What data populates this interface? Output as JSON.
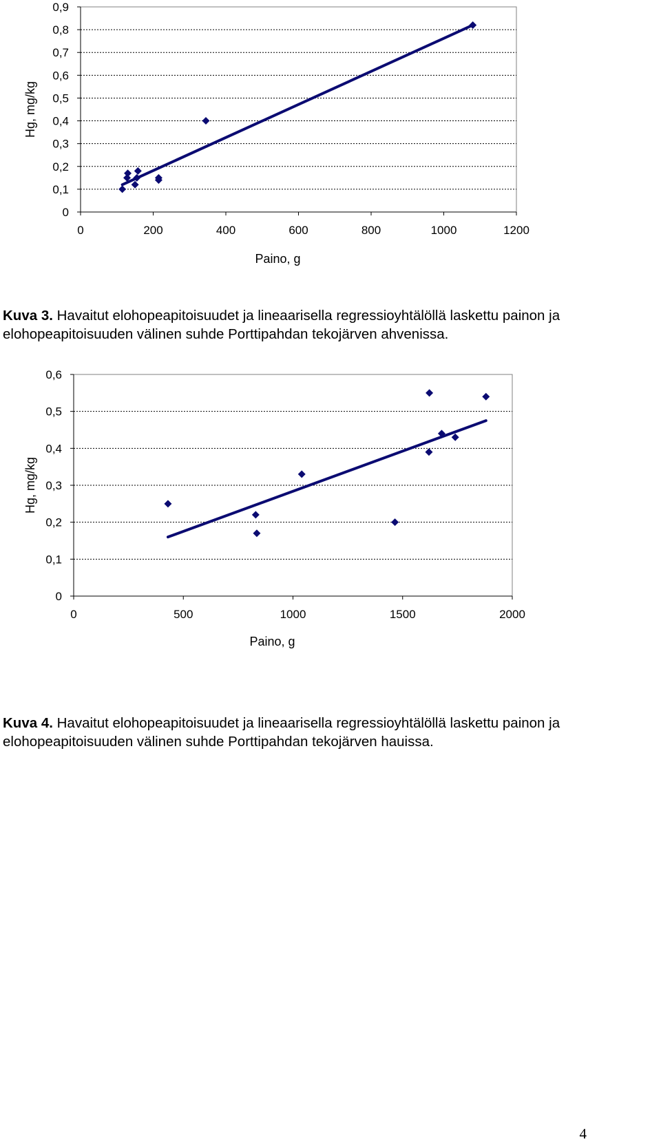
{
  "chart_data": [
    {
      "type": "scatter",
      "title": "",
      "xlabel": "Paino, g",
      "ylabel": "Hg, mg/kg",
      "xlim": [
        0,
        1200
      ],
      "ylim": [
        0,
        0.9
      ],
      "x_ticks": [
        0,
        200,
        400,
        600,
        800,
        1000,
        1200
      ],
      "y_ticks": [
        0,
        0.1,
        0.2,
        0.3,
        0.4,
        0.5,
        0.6,
        0.7,
        0.8,
        0.9
      ],
      "x_tick_labels": [
        "0",
        "200",
        "400",
        "600",
        "800",
        "1000",
        "1200"
      ],
      "y_tick_labels": [
        "0",
        "0,1",
        "0,2",
        "0,3",
        "0,4",
        "0,5",
        "0,6",
        "0,7",
        "0,8",
        "0,9"
      ],
      "grid": "horizontal dashed",
      "points": [
        {
          "x": 115,
          "y": 0.1
        },
        {
          "x": 128,
          "y": 0.15
        },
        {
          "x": 130,
          "y": 0.17
        },
        {
          "x": 150,
          "y": 0.12
        },
        {
          "x": 155,
          "y": 0.15
        },
        {
          "x": 158,
          "y": 0.18
        },
        {
          "x": 215,
          "y": 0.14
        },
        {
          "x": 215,
          "y": 0.15
        },
        {
          "x": 345,
          "y": 0.4
        },
        {
          "x": 1080,
          "y": 0.82
        }
      ],
      "trendline": {
        "x": [
          115,
          1080
        ],
        "y": [
          0.12,
          0.82
        ]
      },
      "colors": {
        "series": "#0b0b72"
      }
    },
    {
      "type": "scatter",
      "title": "",
      "xlabel": "Paino, g",
      "ylabel": "Hg, mg/kg",
      "xlim": [
        0,
        2000
      ],
      "ylim": [
        0,
        0.6
      ],
      "x_ticks": [
        0,
        500,
        1000,
        1500,
        2000
      ],
      "y_ticks": [
        0,
        0.1,
        0.2,
        0.3,
        0.4,
        0.5,
        0.6
      ],
      "x_tick_labels": [
        "0",
        "500",
        "1000",
        "1500",
        "2000"
      ],
      "y_tick_labels": [
        "0",
        "0,1",
        "0,2",
        "0,3",
        "0,4",
        "0,5",
        "0,6"
      ],
      "grid": "horizontal dashed",
      "points": [
        {
          "x": 430,
          "y": 0.25
        },
        {
          "x": 830,
          "y": 0.22
        },
        {
          "x": 835,
          "y": 0.17
        },
        {
          "x": 1040,
          "y": 0.33
        },
        {
          "x": 1465,
          "y": 0.2
        },
        {
          "x": 1620,
          "y": 0.39
        },
        {
          "x": 1622,
          "y": 0.55
        },
        {
          "x": 1678,
          "y": 0.44
        },
        {
          "x": 1740,
          "y": 0.43
        },
        {
          "x": 1880,
          "y": 0.54
        }
      ],
      "trendline": {
        "x": [
          430,
          1880
        ],
        "y": [
          0.16,
          0.475
        ]
      },
      "colors": {
        "series": "#0b0b72"
      }
    }
  ],
  "captions": [
    {
      "label": "Kuva 3.",
      "text": " Havaitut elohopeapitoisuudet ja lineaarisella regressioyhtälöllä laskettu painon ja elohopeapitoisuuden välinen suhde Porttipahdan tekojärven ahvenissa."
    },
    {
      "label": "Kuva 4.",
      "text": " Havaitut elohopeapitoisuudet ja lineaarisella regressioyhtälöllä laskettu painon ja elohopeapitoisuuden välinen suhde Porttipahdan tekojärven hauissa."
    }
  ],
  "page_number": "4"
}
